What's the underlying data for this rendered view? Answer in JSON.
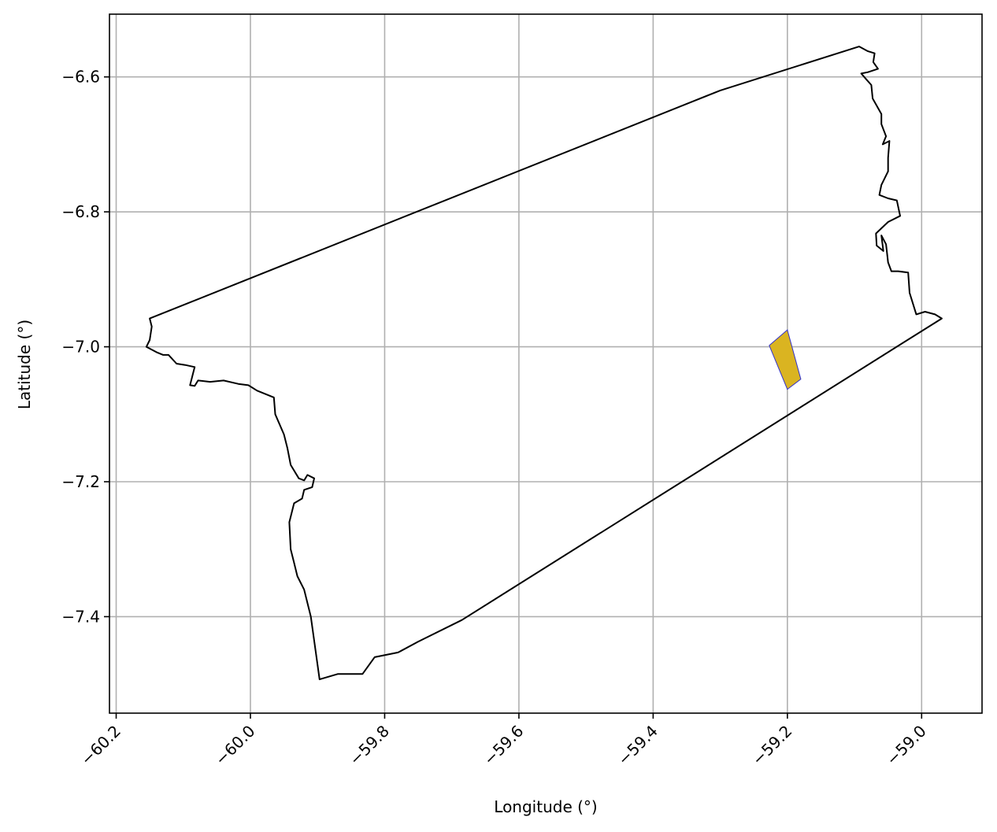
{
  "chart_data": {
    "type": "map",
    "xlabel": "Longitude (°)",
    "ylabel": "Latitude (°)",
    "xlim": [
      -60.21,
      -58.91
    ],
    "ylim": [
      -7.543,
      -6.507
    ],
    "grid": true,
    "x_ticks": [
      {
        "value": -60.2,
        "label": "−60.2"
      },
      {
        "value": -60.0,
        "label": "−60.0"
      },
      {
        "value": -59.8,
        "label": "−59.8"
      },
      {
        "value": -59.6,
        "label": "−59.6"
      },
      {
        "value": -59.4,
        "label": "−59.4"
      },
      {
        "value": -59.2,
        "label": "−59.2"
      },
      {
        "value": -59.0,
        "label": "−59.0"
      }
    ],
    "y_ticks": [
      {
        "value": -6.6,
        "label": "−6.6"
      },
      {
        "value": -6.8,
        "label": "−6.8"
      },
      {
        "value": -7.0,
        "label": "−7.0"
      },
      {
        "value": -7.2,
        "label": "−7.2"
      },
      {
        "value": -7.4,
        "label": "−7.4"
      }
    ],
    "region_outline": {
      "stroke": "#000000",
      "fill": "none",
      "coords": [
        [
          -60.15,
          -6.958
        ],
        [
          -59.3,
          -6.62
        ],
        [
          -59.093,
          -6.555
        ],
        [
          -59.08,
          -6.562
        ],
        [
          -59.07,
          -6.565
        ],
        [
          -59.072,
          -6.578
        ],
        [
          -59.065,
          -6.588
        ],
        [
          -59.08,
          -6.593
        ],
        [
          -59.09,
          -6.595
        ],
        [
          -59.083,
          -6.603
        ],
        [
          -59.075,
          -6.612
        ],
        [
          -59.073,
          -6.632
        ],
        [
          -59.06,
          -6.655
        ],
        [
          -59.06,
          -6.67
        ],
        [
          -59.053,
          -6.688
        ],
        [
          -59.058,
          -6.7
        ],
        [
          -59.048,
          -6.695
        ],
        [
          -59.05,
          -6.72
        ],
        [
          -59.05,
          -6.74
        ],
        [
          -59.06,
          -6.76
        ],
        [
          -59.063,
          -6.775
        ],
        [
          -59.05,
          -6.78
        ],
        [
          -59.037,
          -6.783
        ],
        [
          -59.032,
          -6.806
        ],
        [
          -59.05,
          -6.815
        ],
        [
          -59.068,
          -6.832
        ],
        [
          -59.067,
          -6.85
        ],
        [
          -59.057,
          -6.858
        ],
        [
          -59.06,
          -6.835
        ],
        [
          -59.053,
          -6.848
        ],
        [
          -59.05,
          -6.875
        ],
        [
          -59.045,
          -6.888
        ],
        [
          -59.035,
          -6.888
        ],
        [
          -59.02,
          -6.89
        ],
        [
          -59.018,
          -6.92
        ],
        [
          -59.008,
          -6.952
        ],
        [
          -58.995,
          -6.948
        ],
        [
          -58.98,
          -6.952
        ],
        [
          -58.97,
          -6.958
        ],
        [
          -59.685,
          -7.405
        ],
        [
          -59.75,
          -7.437
        ],
        [
          -59.78,
          -7.453
        ],
        [
          -59.815,
          -7.46
        ],
        [
          -59.833,
          -7.485
        ],
        [
          -59.87,
          -7.485
        ],
        [
          -59.897,
          -7.493
        ],
        [
          -59.91,
          -7.4
        ],
        [
          -59.92,
          -7.36
        ],
        [
          -59.93,
          -7.34
        ],
        [
          -59.935,
          -7.32
        ],
        [
          -59.94,
          -7.3
        ],
        [
          -59.942,
          -7.26
        ],
        [
          -59.935,
          -7.232
        ],
        [
          -59.923,
          -7.225
        ],
        [
          -59.92,
          -7.212
        ],
        [
          -59.908,
          -7.208
        ],
        [
          -59.905,
          -7.195
        ],
        [
          -59.915,
          -7.19
        ],
        [
          -59.92,
          -7.198
        ],
        [
          -59.928,
          -7.195
        ],
        [
          -59.94,
          -7.175
        ],
        [
          -59.945,
          -7.15
        ],
        [
          -59.95,
          -7.13
        ],
        [
          -59.963,
          -7.1
        ],
        [
          -59.965,
          -7.075
        ],
        [
          -59.99,
          -7.065
        ],
        [
          -60.003,
          -7.057
        ],
        [
          -60.018,
          -7.055
        ],
        [
          -60.04,
          -7.05
        ],
        [
          -60.06,
          -7.052
        ],
        [
          -60.078,
          -7.05
        ],
        [
          -60.083,
          -7.058
        ],
        [
          -60.09,
          -7.057
        ],
        [
          -60.083,
          -7.03
        ],
        [
          -60.097,
          -7.027
        ],
        [
          -60.11,
          -7.025
        ],
        [
          -60.122,
          -7.012
        ],
        [
          -60.13,
          -7.012
        ],
        [
          -60.14,
          -7.008
        ],
        [
          -60.155,
          -7.0
        ],
        [
          -60.15,
          -6.99
        ],
        [
          -60.147,
          -6.97
        ],
        [
          -60.15,
          -6.958
        ]
      ]
    },
    "highlight_polygon": {
      "fill": "#DAB421",
      "stroke": "#3333cc",
      "coords": [
        [
          -59.227,
          -6.998
        ],
        [
          -59.2,
          -6.975
        ],
        [
          -59.18,
          -7.048
        ],
        [
          -59.2,
          -7.063
        ],
        [
          -59.227,
          -6.998
        ]
      ]
    }
  }
}
